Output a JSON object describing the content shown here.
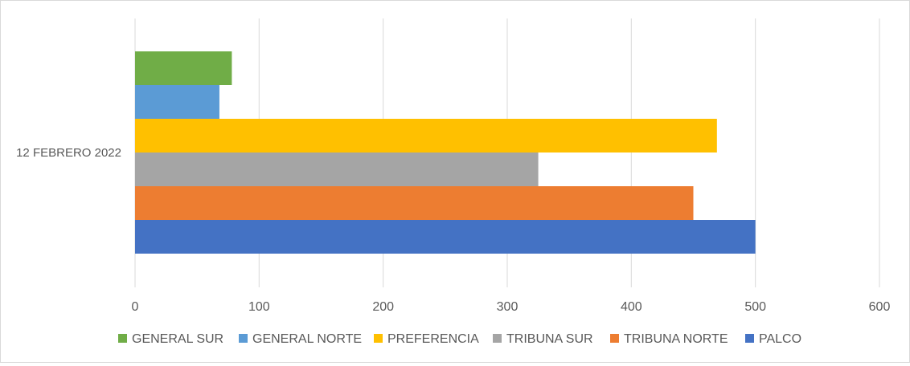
{
  "chart_data": {
    "type": "bar",
    "orientation": "horizontal",
    "categories": [
      "12 FEBRERO 2022"
    ],
    "series": [
      {
        "name": "GENERAL SUR",
        "values": [
          78
        ],
        "color": "#70ad47"
      },
      {
        "name": "GENERAL NORTE",
        "values": [
          68
        ],
        "color": "#5b9bd5"
      },
      {
        "name": "PREFERENCIA",
        "values": [
          469
        ],
        "color": "#ffc000"
      },
      {
        "name": "TRIBUNA SUR",
        "values": [
          325
        ],
        "color": "#a5a5a5"
      },
      {
        "name": "TRIBUNA NORTE",
        "values": [
          450
        ],
        "color": "#ed7d31"
      },
      {
        "name": "PALCO",
        "values": [
          500
        ],
        "color": "#4472c4"
      }
    ],
    "xlim": [
      0,
      600
    ],
    "xticks": [
      0,
      100,
      200,
      300,
      400,
      500,
      600
    ],
    "grid": true,
    "legend_position": "bottom"
  }
}
